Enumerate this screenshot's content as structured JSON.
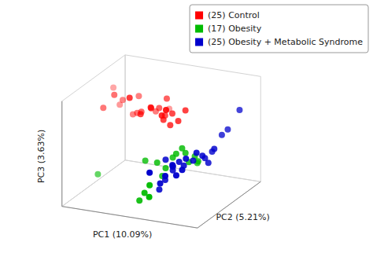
{
  "chart_data": {
    "type": "scatter3d",
    "xlabel": "PC1 (10.09%)",
    "ylabel": "PC2 (5.21%)",
    "zlabel": "PC3 (3.63%)",
    "xlim": [
      -0.4,
      0.4
    ],
    "ylim": [
      -0.1,
      0.4
    ],
    "zlim": [
      -0.15,
      0.1
    ],
    "grid": false,
    "legend": "upper right",
    "tick_labels": false,
    "series": [
      {
        "name": "(25) Control",
        "color": "#ff0000",
        "x": [
          -0.38,
          -0.32,
          -0.28,
          -0.3,
          -0.35,
          -0.22,
          -0.18,
          -0.2,
          -0.14,
          -0.1,
          -0.08,
          -0.05,
          -0.02,
          0,
          -0.06,
          -0.1,
          -0.04,
          0.02,
          0.04,
          -0.15,
          0.06,
          0.05,
          0.1,
          0.12,
          0.08
        ],
        "y": [
          0.28,
          0.25,
          0.22,
          0.18,
          0.16,
          0.22,
          0.2,
          0.24,
          0.18,
          0.24,
          0.32,
          0.2,
          0.22,
          0.18,
          0.15,
          0.12,
          0.12,
          0.14,
          0.1,
          0.1,
          0.14,
          0.17,
          0.15,
          0.18,
          0.08
        ],
        "z": [
          0.05,
          0.02,
          0.04,
          0.06,
          0.03,
          0.01,
          0.02,
          0.05,
          0.03,
          0.02,
          0.01,
          0.04,
          0.06,
          0.03,
          0.05,
          0.04,
          0.06,
          0.03,
          0.05,
          0.08,
          0.02,
          0.04,
          0.03,
          0.05,
          0.07
        ]
      },
      {
        "name": "(17) Obesity",
        "color": "#00bb00",
        "x": [
          -0.3,
          -0.02,
          0.05,
          0.08,
          0.1,
          0.12,
          0.14,
          0.16,
          0.18,
          0.2,
          0.22,
          0.22,
          0.24,
          0.02,
          0.05,
          0.08,
          0.1
        ],
        "y": [
          0.05,
          0.05,
          0.05,
          0.05,
          0.05,
          0.08,
          0.08,
          0.1,
          0.1,
          0.1,
          0.12,
          0.14,
          0.12,
          -0.05,
          -0.05,
          -0.05,
          -0.08
        ],
        "z": [
          -0.1,
          -0.05,
          -0.05,
          -0.08,
          -0.06,
          -0.04,
          -0.03,
          -0.02,
          -0.03,
          -0.05,
          -0.04,
          -0.06,
          -0.05,
          -0.12,
          -0.1,
          -0.08,
          -0.1
        ]
      },
      {
        "name": "(25) Obesity + Metabolic Syndrome",
        "color": "#0000cc",
        "x": [
          0.1,
          0.12,
          0.14,
          0.12,
          0.15,
          0.18,
          0.2,
          0.22,
          0.24,
          0.26,
          0.28,
          0.28,
          0.3,
          0.3,
          0.32,
          0.32,
          0.34,
          0.1,
          0.12,
          0.15,
          0.18,
          0.2,
          0.22,
          0.08,
          0.38
        ],
        "y": [
          0.05,
          0.08,
          0.05,
          0.02,
          0.04,
          0.05,
          0.06,
          0.05,
          0.08,
          0.08,
          0.1,
          0.12,
          0.12,
          0.15,
          0.14,
          0.2,
          0.22,
          0,
          -0.02,
          -0.02,
          0,
          0,
          0.02,
          -0.05,
          0.26
        ],
        "z": [
          -0.04,
          -0.06,
          -0.05,
          -0.08,
          -0.06,
          -0.04,
          -0.05,
          -0.03,
          -0.04,
          -0.02,
          -0.03,
          -0.04,
          -0.05,
          -0.03,
          -0.02,
          0,
          0.01,
          -0.1,
          -0.08,
          -0.06,
          -0.04,
          -0.06,
          -0.05,
          -0.05,
          0.05
        ]
      }
    ]
  }
}
